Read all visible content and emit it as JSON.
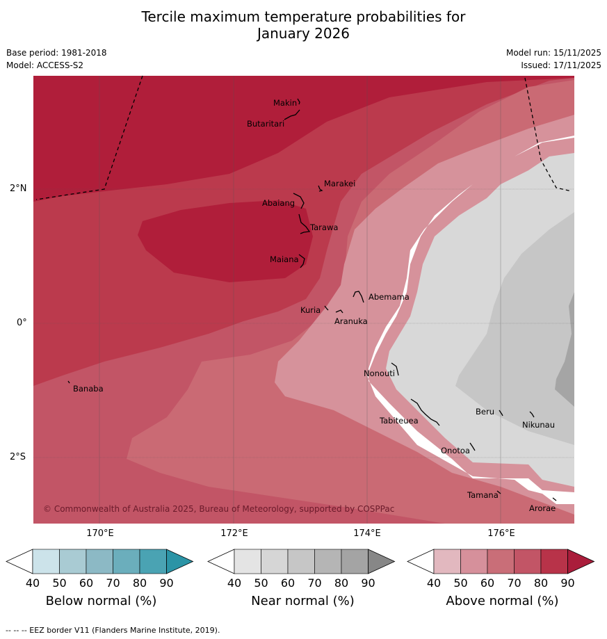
{
  "title_line1": "Tercile maximum temperature probabilities for",
  "title_line2": "January 2026",
  "base_period": "Base period: 1981-2018",
  "model": "Model: ACCESS-S2",
  "model_run": "Model run: 15/11/2025",
  "issued": "Issued: 17/11/2025",
  "copyright": "© Commonwealth of Australia 2025, Bureau of Meteorology, supported by COSPPac",
  "footer": "--  --  -- EEZ border V11 (Flanders Marine Institute, 2019).",
  "lon_labels": [
    "170°E",
    "172°E",
    "174°E",
    "176°E"
  ],
  "lat_labels": [
    "2°N",
    "0°",
    "2°S"
  ],
  "islands": [
    "Makin",
    "Butaritari",
    "Marakei",
    "Abaiang",
    "Tarawa",
    "Maiana",
    "Abemama",
    "Kuria",
    "Aranuka",
    "Nonouti",
    "Banaba",
    "Beru",
    "Nikunau",
    "Tabiteuea",
    "Onotoa",
    "Tamana",
    "Arorae"
  ],
  "colorbars": [
    {
      "title": "Below normal (%)",
      "ticks": [
        "40",
        "50",
        "60",
        "70",
        "80",
        "90"
      ],
      "colors": [
        "#cce3ea",
        "#a9cbd3",
        "#8cb9c5",
        "#6baebc",
        "#4aa3b3",
        "#2b94a6"
      ]
    },
    {
      "title": "Near normal (%)",
      "ticks": [
        "40",
        "50",
        "60",
        "70",
        "80",
        "90"
      ],
      "colors": [
        "#e4e4e4",
        "#d6d6d6",
        "#c6c6c6",
        "#b5b5b5",
        "#a4a4a4",
        "#878787"
      ]
    },
    {
      "title": "Above normal (%)",
      "ticks": [
        "40",
        "50",
        "60",
        "70",
        "80",
        "90"
      ],
      "colors": [
        "#e2b8bf",
        "#d6909b",
        "#c96e78",
        "#c25566",
        "#b83349",
        "#aa1d3b"
      ]
    }
  ],
  "colors": {
    "above_90": "#b01e3a",
    "above_80": "#bb3a4d",
    "above_70": "#c25566",
    "above_60": "#ca6a74",
    "above_50": "#d6929b",
    "near_40": "#d8d8d8",
    "near_50": "#c6c6c6",
    "near_60": "#a5a5a5"
  }
}
